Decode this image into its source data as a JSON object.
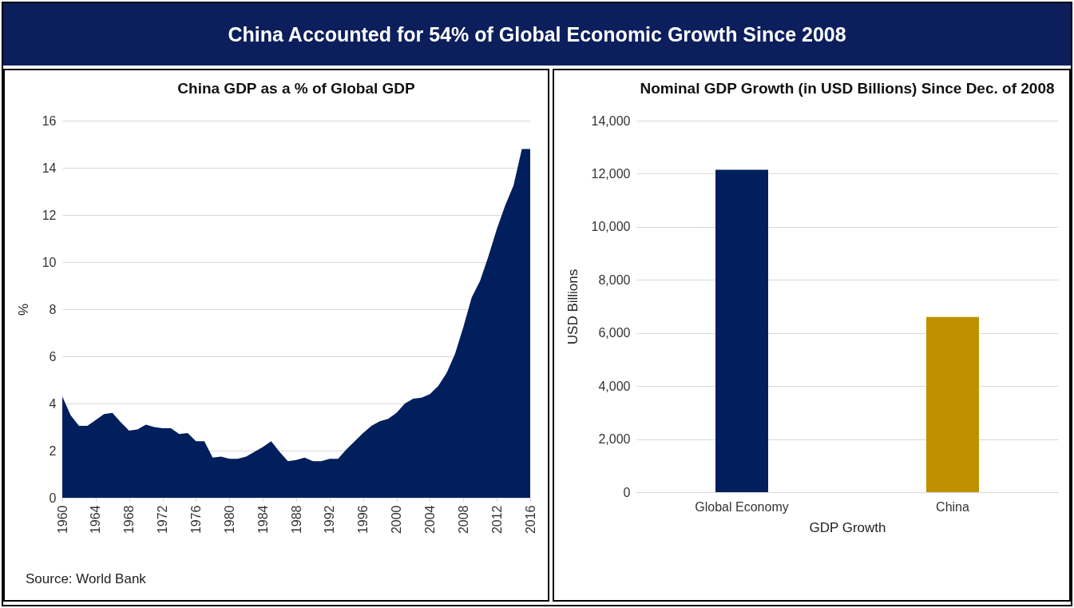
{
  "chart_data": [
    {
      "type": "area",
      "title": "China Accounted for 54% of Global Economic Growth Since 2008",
      "subtitle": "China GDP as a % of Global GDP",
      "ylabel": "%",
      "color": "#001f5c",
      "grid": "y",
      "x": [
        1960,
        1961,
        1962,
        1963,
        1964,
        1965,
        1966,
        1967,
        1968,
        1969,
        1970,
        1971,
        1972,
        1973,
        1974,
        1975,
        1976,
        1977,
        1978,
        1979,
        1980,
        1981,
        1982,
        1983,
        1984,
        1985,
        1986,
        1987,
        1988,
        1989,
        1990,
        1991,
        1992,
        1993,
        1994,
        1995,
        1996,
        1997,
        1998,
        1999,
        2000,
        2001,
        2002,
        2003,
        2004,
        2005,
        2006,
        2007,
        2008,
        2009,
        2010,
        2011,
        2012,
        2013,
        2014,
        2015,
        2016
      ],
      "values": [
        4.3,
        3.5,
        3.05,
        3.05,
        3.3,
        3.55,
        3.6,
        3.2,
        2.85,
        2.9,
        3.1,
        3.0,
        2.95,
        2.95,
        2.7,
        2.75,
        2.4,
        2.4,
        1.7,
        1.75,
        1.65,
        1.65,
        1.75,
        1.95,
        2.15,
        2.4,
        1.95,
        1.55,
        1.6,
        1.7,
        1.55,
        1.55,
        1.65,
        1.65,
        2.05,
        2.4,
        2.75,
        3.05,
        3.25,
        3.35,
        3.6,
        4.0,
        4.2,
        4.25,
        4.4,
        4.75,
        5.3,
        6.1,
        7.25,
        8.5,
        9.2,
        10.25,
        11.4,
        12.4,
        13.25,
        14.8,
        14.8
      ],
      "xlim": [
        1960,
        2016
      ],
      "xticks": [
        1960,
        1964,
        1968,
        1972,
        1976,
        1980,
        1984,
        1988,
        1992,
        1996,
        2000,
        2004,
        2008,
        2012,
        2016
      ],
      "ylim": [
        0,
        16
      ],
      "yticks": [
        0,
        2,
        4,
        6,
        8,
        10,
        12,
        14,
        16
      ],
      "annotations": [
        "Source: World Bank"
      ]
    },
    {
      "type": "bar",
      "title": "Nominal GDP Growth (in USD Billions) Since Dec. of 2008",
      "xlabel": "GDP Growth",
      "ylabel": "USD Billions",
      "grid": "y",
      "categories": [
        "Global Economy",
        "China"
      ],
      "values": [
        12150,
        6600
      ],
      "colors": [
        "#001f5c",
        "#bf9000"
      ],
      "ylim": [
        0,
        14000
      ],
      "yticks": [
        {
          "value": 0,
          "label": "0"
        },
        {
          "value": 2000,
          "label": "2,000"
        },
        {
          "value": 4000,
          "label": "4,000"
        },
        {
          "value": 6000,
          "label": "6,000"
        },
        {
          "value": 8000,
          "label": "8,000"
        },
        {
          "value": 10000,
          "label": "10,000"
        },
        {
          "value": 12000,
          "label": "12,000"
        },
        {
          "value": 14000,
          "label": "14,000"
        }
      ]
    }
  ]
}
